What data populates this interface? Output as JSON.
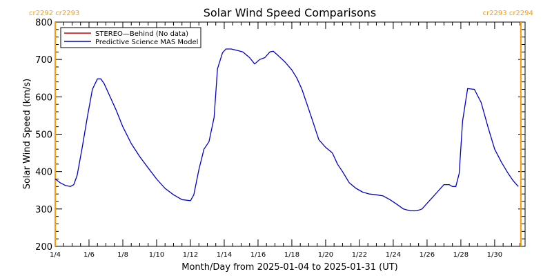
{
  "chart_data": {
    "type": "line",
    "title": "Solar Wind Speed Comparisons",
    "xlabel": "Month/Day from 2025-01-04 to 2025-01-31 (UT)",
    "ylabel": "Solar Wind Speed (km/s)",
    "xlim": [
      4,
      31.8
    ],
    "ylim": [
      200,
      800
    ],
    "x_tick_labels": [
      "1/4",
      "1/6",
      "1/8",
      "1/10",
      "1/12",
      "1/14",
      "1/16",
      "1/18",
      "1/20",
      "1/22",
      "1/24",
      "1/26",
      "1/28",
      "1/30"
    ],
    "y_tick_labels": [
      "200",
      "300",
      "400",
      "500",
      "600",
      "700",
      "800"
    ],
    "carrington_markers": [
      {
        "label": "cr2292 cr2293",
        "x": 4.0,
        "position": "left"
      },
      {
        "label": "cr2293 cr2294",
        "x": 31.55,
        "position": "right"
      }
    ],
    "legend_placement": "top-left",
    "series": [
      {
        "name": "STEREO—Behind (No data)",
        "color": "#cc0000",
        "x": [],
        "values": []
      },
      {
        "name": "Predictive Science MAS Model",
        "color": "#0000cc",
        "x": [
          4.0,
          4.3,
          4.6,
          4.9,
          5.1,
          5.3,
          5.6,
          5.9,
          6.2,
          6.5,
          6.7,
          6.9,
          7.2,
          7.6,
          8.0,
          8.5,
          9.0,
          9.5,
          10.0,
          10.5,
          11.0,
          11.5,
          12.0,
          12.2,
          12.5,
          12.8,
          13.1,
          13.4,
          13.6,
          13.9,
          14.1,
          14.4,
          14.7,
          15.1,
          15.5,
          15.8,
          16.1,
          16.4,
          16.7,
          16.9,
          17.2,
          17.6,
          18.0,
          18.3,
          18.6,
          18.9,
          19.2,
          19.6,
          20.0,
          20.4,
          20.7,
          21.0,
          21.4,
          21.8,
          22.2,
          22.6,
          23.0,
          23.4,
          23.8,
          24.2,
          24.6,
          25.0,
          25.4,
          25.7,
          26.0,
          26.3,
          26.6,
          27.0,
          27.3,
          27.5,
          27.7,
          27.9,
          28.1,
          28.4,
          28.8,
          29.2,
          29.6,
          30.0,
          30.4,
          30.8,
          31.1,
          31.4
        ],
        "values": [
          380,
          370,
          363,
          360,
          365,
          390,
          465,
          545,
          620,
          648,
          648,
          635,
          605,
          565,
          520,
          475,
          440,
          410,
          380,
          355,
          338,
          325,
          322,
          338,
          405,
          460,
          480,
          545,
          675,
          718,
          728,
          728,
          725,
          720,
          705,
          688,
          700,
          705,
          720,
          722,
          710,
          693,
          672,
          650,
          620,
          580,
          540,
          485,
          465,
          450,
          420,
          400,
          370,
          355,
          345,
          340,
          338,
          335,
          325,
          313,
          300,
          295,
          295,
          300,
          315,
          330,
          345,
          365,
          365,
          360,
          360,
          395,
          535,
          622,
          620,
          585,
          520,
          460,
          425,
          395,
          375,
          360
        ]
      }
    ]
  }
}
